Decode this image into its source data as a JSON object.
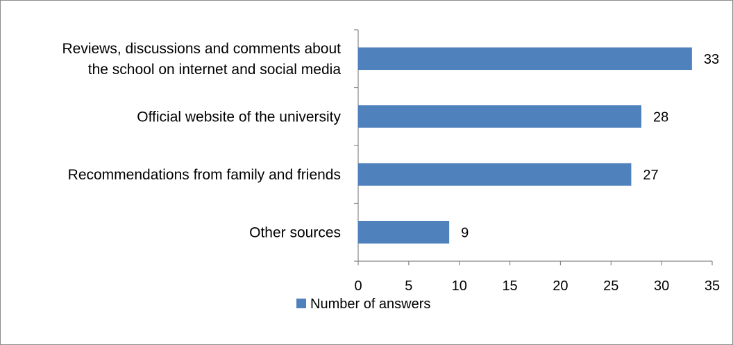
{
  "chart_data": {
    "type": "bar",
    "orientation": "horizontal",
    "categories": [
      "Reviews, discussions and comments about the school on internet and social media",
      "Official website of the university",
      "Recommendations from family and friends",
      "Other sources"
    ],
    "category_lines": [
      [
        "Reviews, discussions and comments about",
        "the school on internet and social media"
      ],
      [
        "Official website of the university"
      ],
      [
        "Recommendations from family and friends"
      ],
      [
        "Other sources"
      ]
    ],
    "series": [
      {
        "name": "Number of answers",
        "values": [
          33,
          28,
          27,
          9
        ],
        "color": "#4f81bd"
      }
    ],
    "xlim": [
      0,
      35
    ],
    "x_ticks": [
      0,
      5,
      10,
      15,
      20,
      25,
      30,
      35
    ],
    "data_labels": true,
    "grid": false,
    "legend": "bottom"
  }
}
